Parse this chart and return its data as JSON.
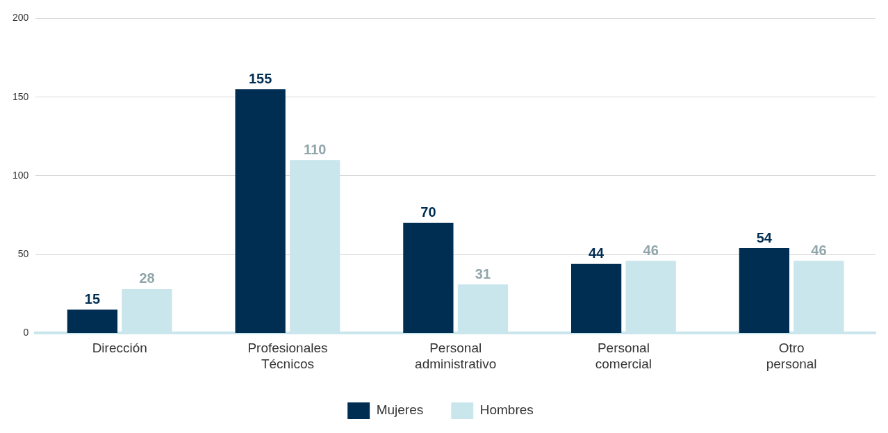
{
  "chart_data": {
    "type": "bar",
    "categories": [
      "Dirección",
      "Profesionales Técnicos",
      "Personal administrativo",
      "Personal comercial",
      "Otro personal"
    ],
    "series": [
      {
        "name": "Mujeres",
        "color": "#002d52",
        "values": [
          15,
          155,
          70,
          44,
          54
        ]
      },
      {
        "name": "Hombres",
        "color": "#c9e6ec",
        "values": [
          28,
          110,
          31,
          46,
          46
        ]
      }
    ],
    "ylim": [
      0,
      200
    ],
    "yticks": [
      0,
      50,
      100,
      150,
      200
    ],
    "grid": "y",
    "legend": "bottom",
    "data_labels": true
  }
}
